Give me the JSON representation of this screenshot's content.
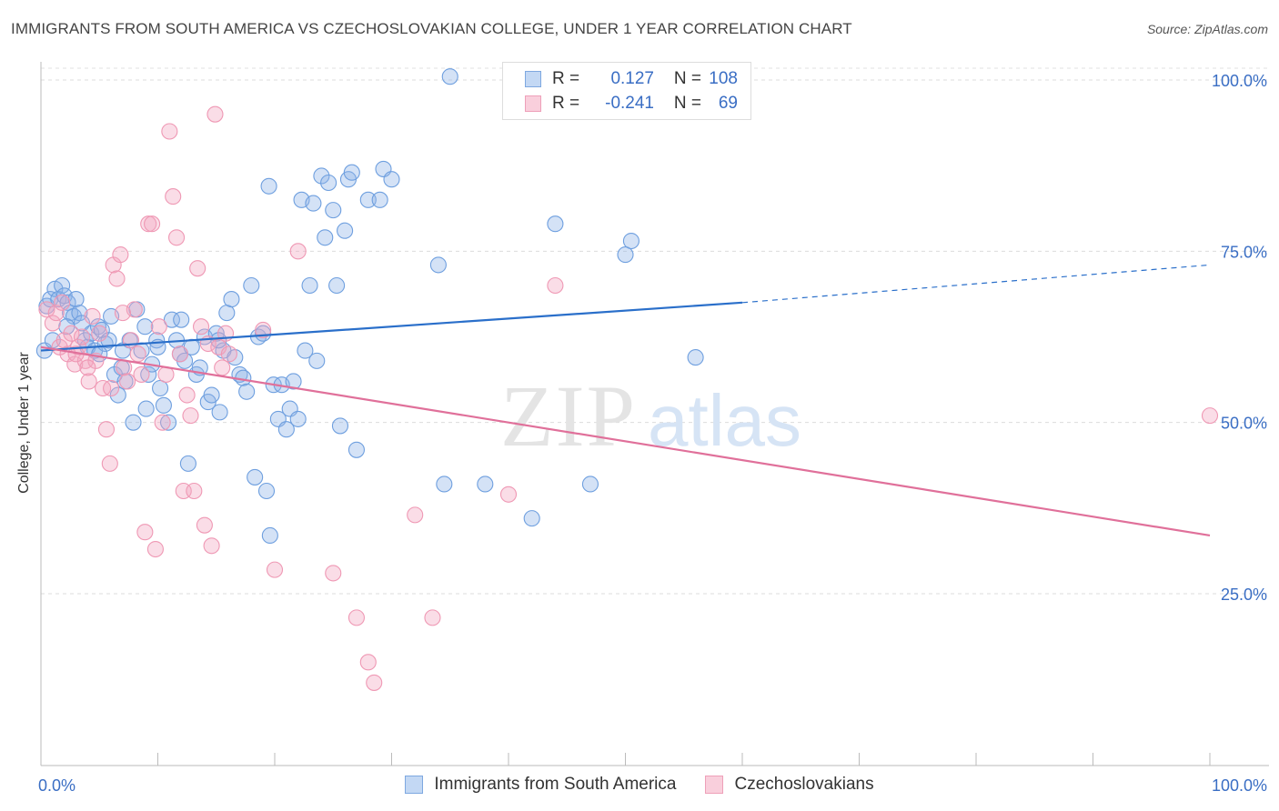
{
  "header": {
    "title": "IMMIGRANTS FROM SOUTH AMERICA VS CZECHOSLOVAKIAN COLLEGE, UNDER 1 YEAR CORRELATION CHART",
    "source": "Source: ZipAtlas.com"
  },
  "watermark": {
    "zip": "ZIP",
    "atlas": "atlas"
  },
  "stats_legend": {
    "rows": [
      {
        "r_label": "R =",
        "r_value": "0.127",
        "n_label": "N =",
        "n_value": "108",
        "color": "#8db4e8"
      },
      {
        "r_label": "R =",
        "r_value": "-0.241",
        "n_label": "N =",
        "n_value": "69",
        "color": "#f3a6bf"
      }
    ]
  },
  "bottom_legend": {
    "items": [
      {
        "label": "Immigrants from South America",
        "color": "#8db4e8"
      },
      {
        "label": "Czechoslovakians",
        "color": "#f3a6bf"
      }
    ]
  },
  "chart_data": {
    "type": "scatter",
    "title": "IMMIGRANTS FROM SOUTH AMERICA VS CZECHOSLOVAKIAN COLLEGE, UNDER 1 YEAR CORRELATION CHART",
    "xlabel": "",
    "ylabel": "College, Under 1 year",
    "xlim": [
      0,
      100
    ],
    "ylim": [
      0,
      105
    ],
    "x_tick_labels": [
      "0.0%",
      "100.0%"
    ],
    "y_tick_labels": [
      "25.0%",
      "50.0%",
      "75.0%",
      "100.0%"
    ],
    "y_ticks": [
      25,
      50,
      75,
      100
    ],
    "grid": true,
    "legend_position": "top-center",
    "series": [
      {
        "name": "Immigrants from South America",
        "color": "#8db4e8",
        "line_color": "#2a6fca",
        "trend": {
          "x0": 0,
          "y0": 60.5,
          "x1": 60,
          "y1": 67.5,
          "dashed_to_x": 100,
          "dashed_to_y": 73
        },
        "points": [
          [
            0.3,
            60.5
          ],
          [
            0.5,
            67
          ],
          [
            0.8,
            68
          ],
          [
            1.2,
            69.5
          ],
          [
            1.5,
            68
          ],
          [
            1.8,
            70
          ],
          [
            2.0,
            68.5
          ],
          [
            2.3,
            67.5
          ],
          [
            2.5,
            66
          ],
          [
            2.8,
            65.5
          ],
          [
            3.0,
            68
          ],
          [
            3.3,
            66
          ],
          [
            3.5,
            64.5
          ],
          [
            3.8,
            62
          ],
          [
            4.0,
            61
          ],
          [
            4.3,
            63
          ],
          [
            4.6,
            60.5
          ],
          [
            4.9,
            64
          ],
          [
            5.2,
            63.5
          ],
          [
            5.5,
            61.5
          ],
          [
            5.8,
            62
          ],
          [
            6.0,
            65.5
          ],
          [
            6.3,
            57
          ],
          [
            6.6,
            54
          ],
          [
            6.9,
            58
          ],
          [
            7.2,
            56
          ],
          [
            7.6,
            62
          ],
          [
            7.9,
            50
          ],
          [
            8.2,
            66.5
          ],
          [
            8.6,
            60.5
          ],
          [
            8.9,
            64
          ],
          [
            9.2,
            57
          ],
          [
            9.5,
            58.5
          ],
          [
            9.9,
            62
          ],
          [
            10.2,
            55
          ],
          [
            10.5,
            52.5
          ],
          [
            10.9,
            50
          ],
          [
            11.2,
            65
          ],
          [
            11.6,
            62
          ],
          [
            11.9,
            60
          ],
          [
            12.3,
            59
          ],
          [
            12.6,
            44
          ],
          [
            12.9,
            61
          ],
          [
            13.3,
            57
          ],
          [
            13.6,
            58
          ],
          [
            14.0,
            62.5
          ],
          [
            14.3,
            53
          ],
          [
            14.6,
            54
          ],
          [
            15.0,
            63
          ],
          [
            15.3,
            51.5
          ],
          [
            15.6,
            60.5
          ],
          [
            15.9,
            66
          ],
          [
            16.3,
            68
          ],
          [
            16.6,
            59.5
          ],
          [
            17.0,
            57
          ],
          [
            17.3,
            56.5
          ],
          [
            17.6,
            54.5
          ],
          [
            18.0,
            70
          ],
          [
            18.3,
            42
          ],
          [
            18.6,
            62.5
          ],
          [
            19.0,
            63
          ],
          [
            19.3,
            40
          ],
          [
            19.6,
            33.5
          ],
          [
            19.9,
            55.5
          ],
          [
            20.3,
            50.5
          ],
          [
            20.6,
            55.5
          ],
          [
            21.0,
            49
          ],
          [
            21.3,
            52
          ],
          [
            21.6,
            56
          ],
          [
            22.0,
            50.5
          ],
          [
            22.3,
            82.5
          ],
          [
            22.6,
            60.5
          ],
          [
            23.0,
            70
          ],
          [
            23.3,
            82
          ],
          [
            23.6,
            59
          ],
          [
            24.0,
            86
          ],
          [
            24.3,
            77
          ],
          [
            24.6,
            85
          ],
          [
            25.0,
            81
          ],
          [
            25.3,
            70
          ],
          [
            25.6,
            49.5
          ],
          [
            26.0,
            78
          ],
          [
            26.3,
            85.5
          ],
          [
            26.6,
            86.5
          ],
          [
            27.0,
            46
          ],
          [
            28.0,
            82.5
          ],
          [
            29.0,
            82.5
          ],
          [
            29.3,
            87
          ],
          [
            30.0,
            85.5
          ],
          [
            34.0,
            73
          ],
          [
            34.5,
            41
          ],
          [
            38.0,
            41
          ],
          [
            42.0,
            36
          ],
          [
            44.0,
            79
          ],
          [
            47.0,
            41
          ],
          [
            50.0,
            74.5
          ],
          [
            50.5,
            76.5
          ],
          [
            56.0,
            59.5
          ],
          [
            35.0,
            100.5
          ],
          [
            19.5,
            84.5
          ],
          [
            10.0,
            61
          ],
          [
            12.0,
            65
          ],
          [
            15.2,
            62
          ],
          [
            9.0,
            52
          ],
          [
            7.0,
            60.5
          ],
          [
            5.0,
            60
          ],
          [
            2.2,
            64
          ],
          [
            1.0,
            62
          ]
        ]
      },
      {
        "name": "Czechoslovakians",
        "color": "#f3a6bf",
        "line_color": "#e0709a",
        "trend": {
          "x0": 0,
          "y0": 61,
          "x1": 100,
          "y1": 33.5
        },
        "points": [
          [
            0.5,
            66.5
          ],
          [
            1.0,
            64.5
          ],
          [
            1.3,
            66
          ],
          [
            1.6,
            61
          ],
          [
            2.0,
            62
          ],
          [
            2.3,
            60
          ],
          [
            2.6,
            63
          ],
          [
            2.9,
            58.5
          ],
          [
            3.2,
            61
          ],
          [
            3.5,
            62.5
          ],
          [
            3.8,
            59
          ],
          [
            4.1,
            56
          ],
          [
            4.4,
            65.5
          ],
          [
            4.7,
            59
          ],
          [
            5.0,
            63
          ],
          [
            5.3,
            55
          ],
          [
            5.6,
            49
          ],
          [
            5.9,
            44
          ],
          [
            6.2,
            73
          ],
          [
            6.5,
            71
          ],
          [
            6.8,
            74.5
          ],
          [
            7.1,
            58
          ],
          [
            7.4,
            56
          ],
          [
            7.7,
            62
          ],
          [
            8.0,
            66.5
          ],
          [
            8.3,
            60
          ],
          [
            8.6,
            57
          ],
          [
            8.9,
            34
          ],
          [
            9.2,
            79
          ],
          [
            9.5,
            79
          ],
          [
            9.8,
            31.5
          ],
          [
            10.1,
            64
          ],
          [
            10.4,
            50
          ],
          [
            10.7,
            57
          ],
          [
            11.0,
            92.5
          ],
          [
            11.3,
            83
          ],
          [
            11.6,
            77
          ],
          [
            11.9,
            60
          ],
          [
            12.2,
            40
          ],
          [
            12.5,
            54
          ],
          [
            12.8,
            51
          ],
          [
            13.1,
            40
          ],
          [
            13.4,
            72.5
          ],
          [
            13.7,
            64
          ],
          [
            14.0,
            35
          ],
          [
            14.3,
            61.5
          ],
          [
            14.6,
            32
          ],
          [
            14.9,
            95
          ],
          [
            15.2,
            61
          ],
          [
            15.5,
            58
          ],
          [
            15.8,
            63
          ],
          [
            16.1,
            60
          ],
          [
            19.0,
            63.5
          ],
          [
            20.0,
            28.5
          ],
          [
            22.0,
            75
          ],
          [
            25.0,
            28
          ],
          [
            27.0,
            21.5
          ],
          [
            28.0,
            15
          ],
          [
            28.5,
            12
          ],
          [
            32.0,
            36.5
          ],
          [
            33.5,
            21.5
          ],
          [
            40.0,
            39.5
          ],
          [
            44.0,
            70
          ],
          [
            100.0,
            51
          ],
          [
            1.8,
            67.5
          ],
          [
            3.0,
            60
          ],
          [
            4.0,
            58
          ],
          [
            6.0,
            55
          ],
          [
            7.0,
            66
          ]
        ]
      }
    ]
  }
}
